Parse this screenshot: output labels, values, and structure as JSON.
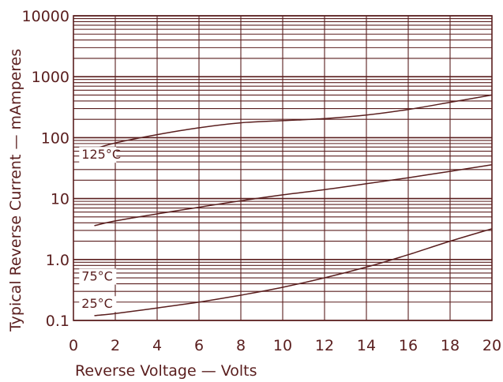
{
  "chart_data": {
    "type": "line",
    "title": "",
    "xlabel": "Reverse Voltage — Volts",
    "ylabel": "Typical Reverse Current — mAmperes",
    "xlim": [
      0,
      20
    ],
    "ylim": [
      0.1,
      10000
    ],
    "yscale": "log",
    "grid": true,
    "x_ticks": [
      {
        "value": 0,
        "label": "0"
      },
      {
        "value": 2,
        "label": "2"
      },
      {
        "value": 4,
        "label": "4"
      },
      {
        "value": 6,
        "label": "6"
      },
      {
        "value": 8,
        "label": "8"
      },
      {
        "value": 10,
        "label": "10"
      },
      {
        "value": 12,
        "label": "12"
      },
      {
        "value": 14,
        "label": "14"
      },
      {
        "value": 16,
        "label": "16"
      },
      {
        "value": 18,
        "label": "18"
      },
      {
        "value": 20,
        "label": "20"
      }
    ],
    "y_ticks": [
      {
        "value": 0.1,
        "label": "0.1"
      },
      {
        "value": 1,
        "label": "1.0"
      },
      {
        "value": 10,
        "label": "10"
      },
      {
        "value": 100,
        "label": "100"
      },
      {
        "value": 1000,
        "label": "1000"
      },
      {
        "value": 10000,
        "label": "10000"
      }
    ],
    "series": [
      {
        "name": "125°C",
        "x": [
          1,
          2,
          4,
          6,
          8,
          10,
          12,
          14,
          16,
          18,
          20
        ],
        "y": [
          65,
          82,
          112,
          145,
          175,
          190,
          205,
          235,
          290,
          380,
          500
        ],
        "label_at": {
          "x": 0.2,
          "y": 45
        }
      },
      {
        "name": "75°C",
        "x": [
          1,
          2,
          4,
          6,
          8,
          10,
          12,
          14,
          16,
          18,
          20
        ],
        "y": [
          3.6,
          4.3,
          5.6,
          7.2,
          9.2,
          11.5,
          14,
          17.5,
          22,
          28,
          36
        ],
        "label_at": {
          "x": 0.2,
          "y": 0.45
        }
      },
      {
        "name": "25°C",
        "x": [
          1,
          2,
          4,
          6,
          8,
          10,
          12,
          14,
          16,
          18,
          20
        ],
        "y": [
          0.12,
          0.13,
          0.16,
          0.2,
          0.26,
          0.35,
          0.5,
          0.75,
          1.2,
          2.0,
          3.2
        ],
        "label_at": {
          "x": 0.2,
          "y": 0.16
        }
      }
    ],
    "colors": {
      "ink": "#5a1e1e",
      "background": "#ffffff"
    }
  }
}
